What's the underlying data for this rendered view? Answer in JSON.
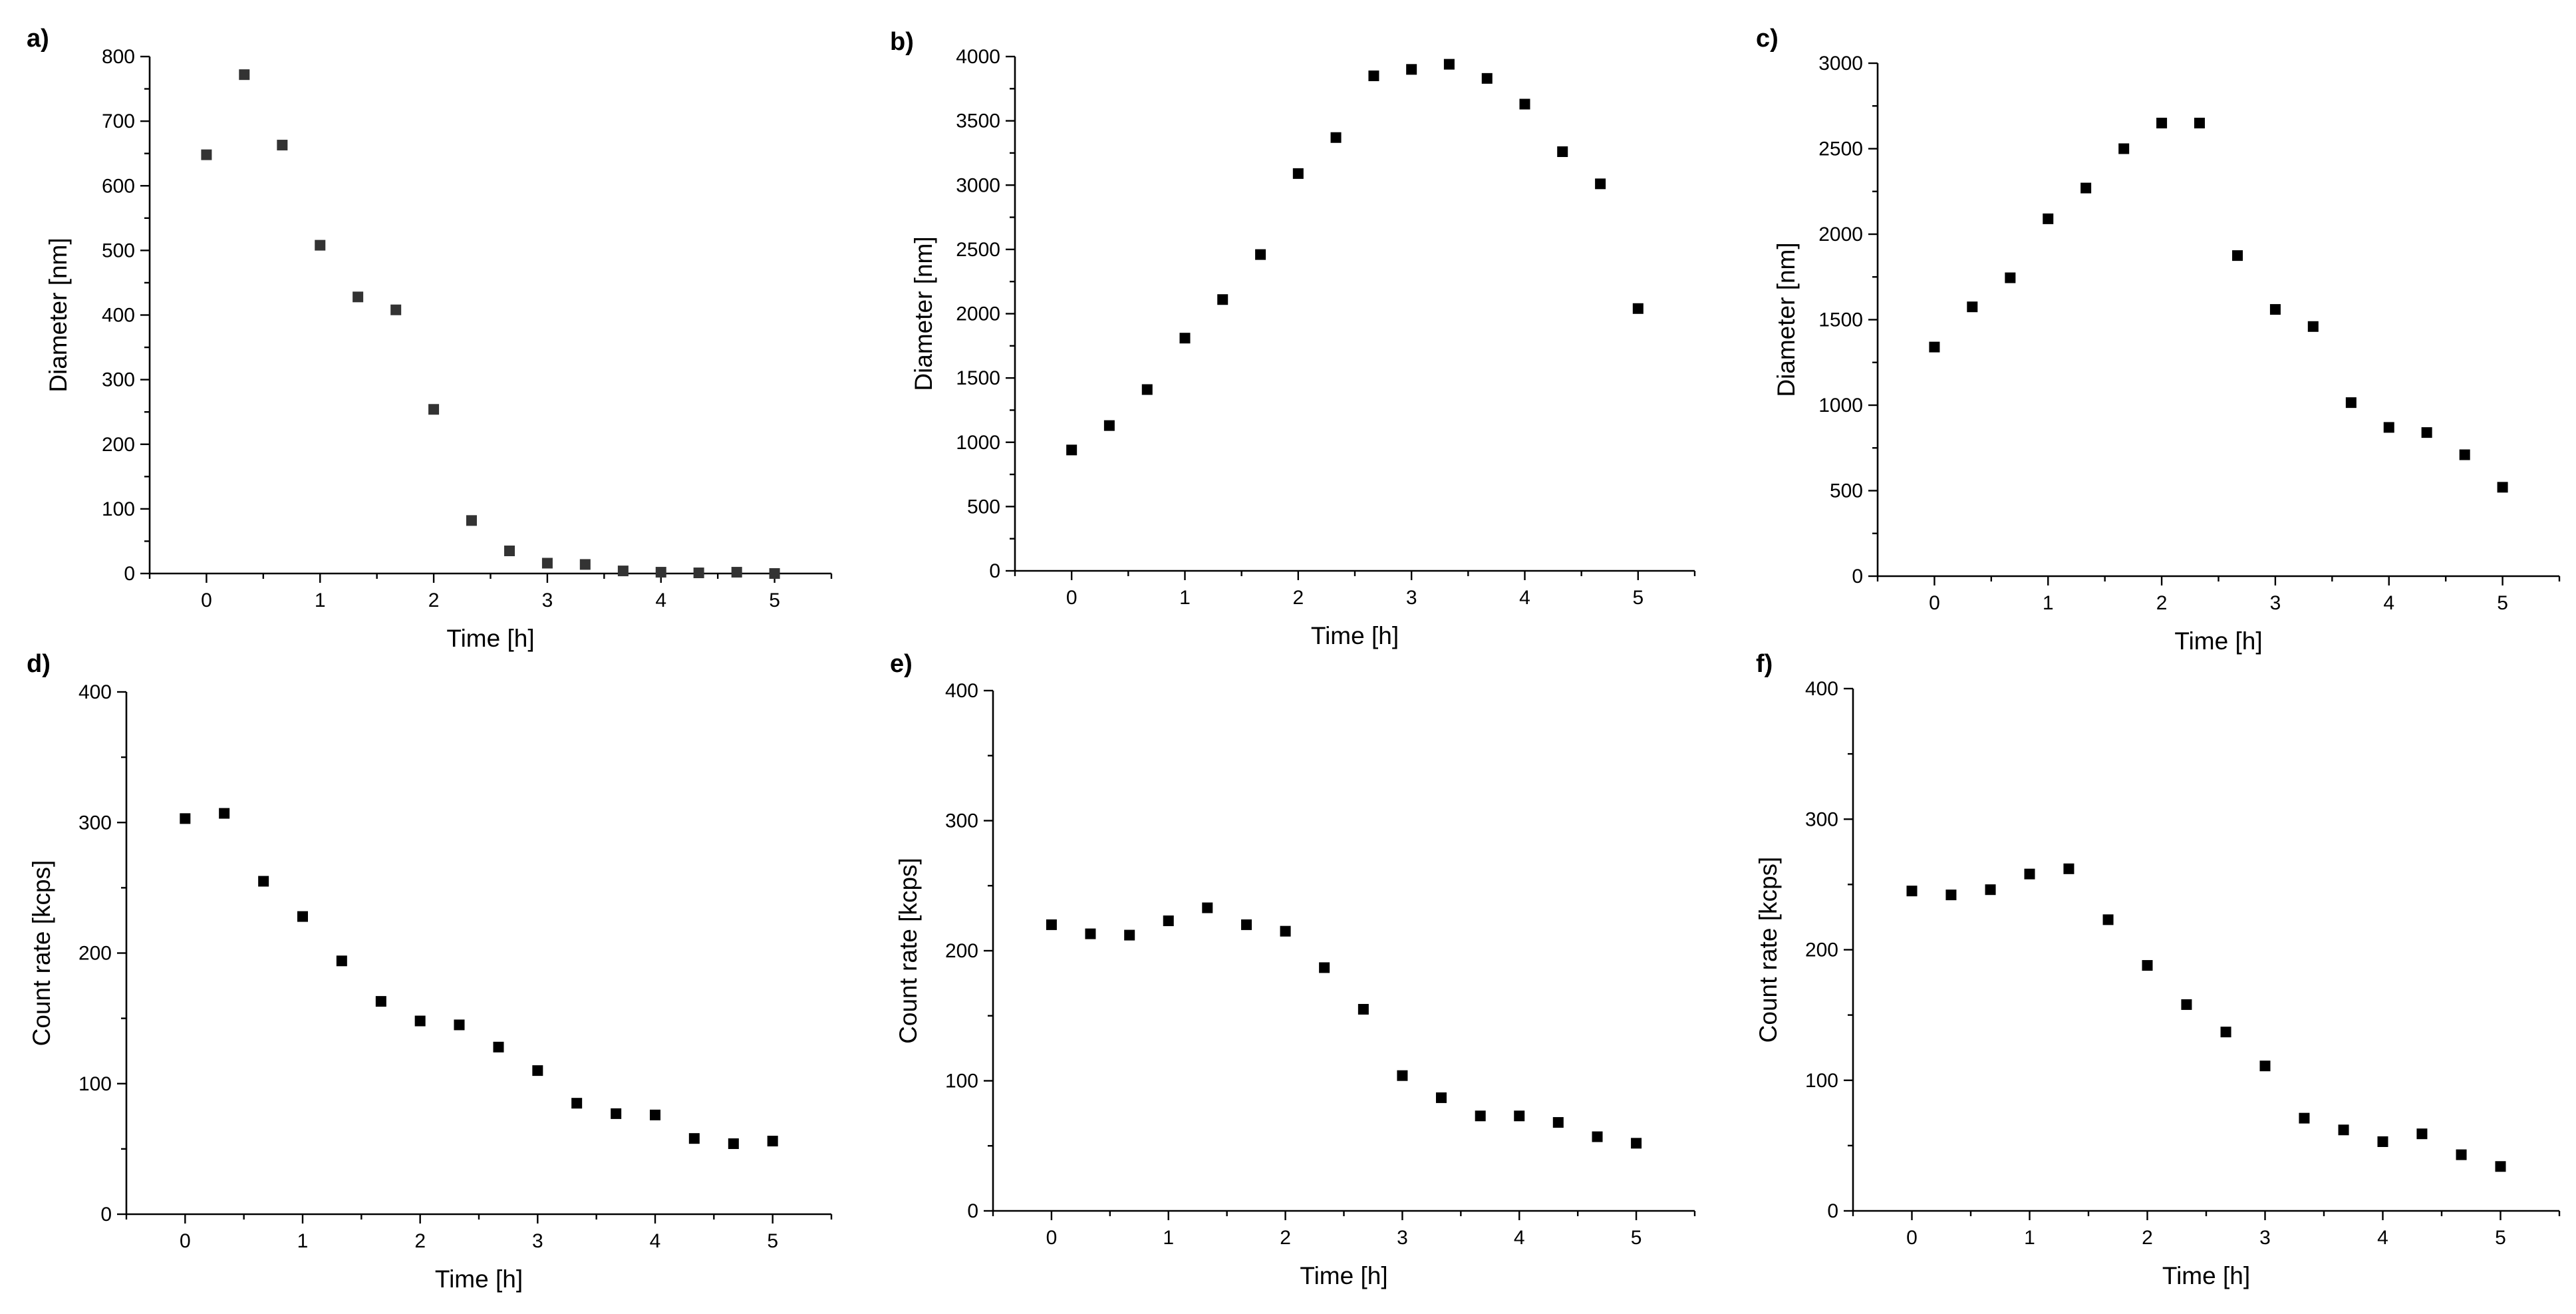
{
  "chart_data": [
    {
      "panel_label": "a)",
      "type": "scatter",
      "title": "",
      "xlabel": "Time [h]",
      "ylabel": "Diameter [nm]",
      "xlim": [
        -0.5,
        5.5
      ],
      "ylim": [
        0,
        800
      ],
      "xticks": [
        "0",
        "1",
        "2",
        "3",
        "4",
        "5"
      ],
      "yticks": [
        "0",
        "100",
        "200",
        "300",
        "400",
        "500",
        "600",
        "700",
        "800"
      ],
      "marker_color": "#333333",
      "series": [
        {
          "name": "",
          "x": [
            0,
            0.333,
            0.667,
            1,
            1.333,
            1.667,
            2,
            2.333,
            2.667,
            3,
            3.333,
            3.667,
            4,
            4.333,
            4.667,
            5
          ],
          "y": [
            648,
            772,
            663,
            508,
            428,
            408,
            254,
            82,
            35,
            16,
            14,
            4,
            2,
            1,
            2,
            0
          ]
        }
      ]
    },
    {
      "panel_label": "b)",
      "type": "scatter",
      "title": "",
      "xlabel": "Time [h]",
      "ylabel": "Diameter [nm]",
      "xlim": [
        -0.5,
        5.5
      ],
      "ylim": [
        0,
        4000
      ],
      "xticks": [
        "0",
        "1",
        "2",
        "3",
        "4",
        "5"
      ],
      "yticks": [
        "0",
        "500",
        "1000",
        "1500",
        "2000",
        "2500",
        "3000",
        "3500",
        "4000"
      ],
      "marker_color": "#000000",
      "series": [
        {
          "name": "",
          "x": [
            0,
            0.333,
            0.667,
            1,
            1.333,
            1.667,
            2,
            2.333,
            2.667,
            3,
            3.333,
            3.667,
            4,
            4.333,
            4.667,
            5
          ],
          "y": [
            940,
            1130,
            1410,
            1810,
            2110,
            2460,
            3090,
            3370,
            3850,
            3900,
            3940,
            3830,
            3630,
            3260,
            3010,
            2040
          ]
        }
      ]
    },
    {
      "panel_label": "c)",
      "type": "scatter",
      "title": "",
      "xlabel": "Time [h]",
      "ylabel": "Diameter [nm]",
      "xlim": [
        -0.5,
        5.5
      ],
      "ylim": [
        0,
        3000
      ],
      "xticks": [
        "0",
        "1",
        "2",
        "3",
        "4",
        "5"
      ],
      "yticks": [
        "0",
        "500",
        "1000",
        "1500",
        "2000",
        "2500",
        "3000"
      ],
      "marker_color": "#000000",
      "series": [
        {
          "name": "",
          "x": [
            0,
            0.333,
            0.667,
            1,
            1.333,
            1.667,
            2,
            2.333,
            2.667,
            3,
            3.333,
            3.667,
            4,
            4.333,
            4.667,
            5
          ],
          "y": [
            1340,
            1575,
            1745,
            2090,
            2270,
            2500,
            2650,
            2650,
            1875,
            1560,
            1460,
            1015,
            870,
            840,
            710,
            520
          ]
        }
      ]
    },
    {
      "panel_label": "d)",
      "type": "scatter",
      "title": "",
      "xlabel": "Time [h]",
      "ylabel": "Count rate [kcps]",
      "xlim": [
        -0.5,
        5.5
      ],
      "ylim": [
        0,
        400
      ],
      "xticks": [
        "0",
        "1",
        "2",
        "3",
        "4",
        "5"
      ],
      "yticks": [
        "0",
        "100",
        "200",
        "300",
        "400"
      ],
      "marker_color": "#000000",
      "series": [
        {
          "name": "",
          "x": [
            0,
            0.333,
            0.667,
            1,
            1.333,
            1.667,
            2,
            2.333,
            2.667,
            3,
            3.333,
            3.667,
            4,
            4.333,
            4.667,
            5
          ],
          "y": [
            303,
            307,
            255,
            228,
            194,
            163,
            148,
            145,
            128,
            110,
            85,
            77,
            76,
            58,
            54,
            56
          ]
        }
      ]
    },
    {
      "panel_label": "e)",
      "type": "scatter",
      "title": "",
      "xlabel": "Time [h]",
      "ylabel": "Count rate [kcps]",
      "xlim": [
        -0.5,
        5.5
      ],
      "ylim": [
        0,
        400
      ],
      "xticks": [
        "0",
        "1",
        "2",
        "3",
        "4",
        "5"
      ],
      "yticks": [
        "0",
        "100",
        "200",
        "300",
        "400"
      ],
      "marker_color": "#000000",
      "series": [
        {
          "name": "",
          "x": [
            0,
            0.333,
            0.667,
            1,
            1.333,
            1.667,
            2,
            2.333,
            2.667,
            3,
            3.333,
            3.667,
            4,
            4.333,
            4.667,
            5
          ],
          "y": [
            220,
            213,
            212,
            223,
            233,
            220,
            215,
            187,
            155,
            104,
            87,
            73,
            73,
            68,
            57,
            52
          ]
        }
      ]
    },
    {
      "panel_label": "f)",
      "type": "scatter",
      "title": "",
      "xlabel": "Time [h]",
      "ylabel": "Count rate [kcps]",
      "xlim": [
        -0.5,
        5.5
      ],
      "ylim": [
        0,
        400
      ],
      "xticks": [
        "0",
        "1",
        "2",
        "3",
        "4",
        "5"
      ],
      "yticks": [
        "0",
        "100",
        "200",
        "300",
        "400"
      ],
      "marker_color": "#000000",
      "series": [
        {
          "name": "",
          "x": [
            0,
            0.333,
            0.667,
            1,
            1.333,
            1.667,
            2,
            2.333,
            2.667,
            3,
            3.333,
            3.667,
            4,
            4.333,
            4.667,
            5
          ],
          "y": [
            245,
            242,
            246,
            258,
            262,
            223,
            188,
            158,
            137,
            111,
            71,
            62,
            53,
            59,
            43,
            34
          ]
        }
      ]
    }
  ]
}
